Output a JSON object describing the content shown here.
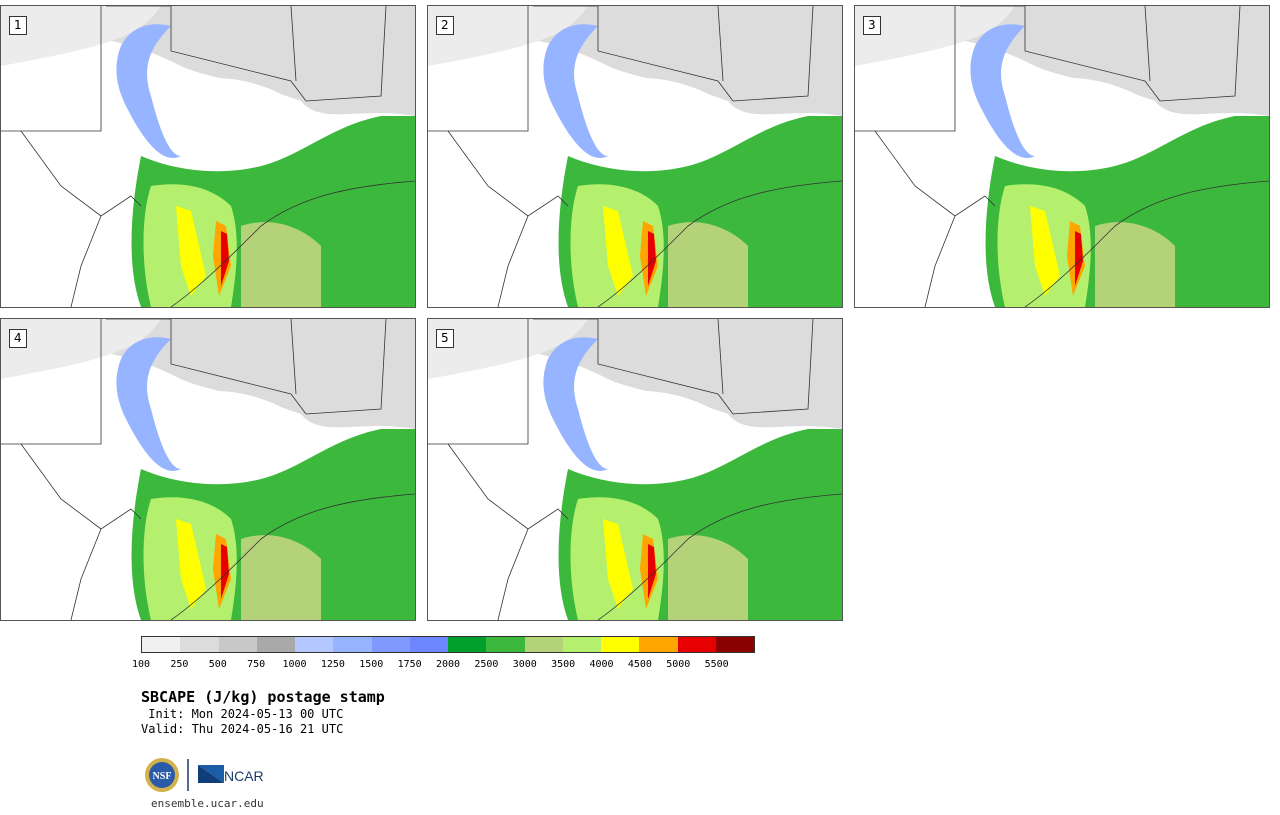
{
  "panels": [
    {
      "label": "1"
    },
    {
      "label": "2"
    },
    {
      "label": "3"
    },
    {
      "label": "4"
    },
    {
      "label": "5"
    }
  ],
  "colorbar": {
    "colors": [
      "#f0f0f0",
      "#dcdcdc",
      "#c8c8c8",
      "#a9a9a9",
      "#b4c8ff",
      "#96b4ff",
      "#8099ff",
      "#6e87ff",
      "#009e2a",
      "#3cb93c",
      "#b4d278",
      "#b4f06e",
      "#ffff00",
      "#ffa500",
      "#e60000",
      "#8b0000"
    ],
    "ticks": [
      "100",
      "250",
      "500",
      "750",
      "1000",
      "1250",
      "1500",
      "1750",
      "2000",
      "2500",
      "3000",
      "3500",
      "4000",
      "4500",
      "5000",
      "5500"
    ]
  },
  "title": "SBCAPE (J/kg) postage stamp",
  "init": " Init: Mon 2024-05-13 00 UTC",
  "valid": "Valid: Thu 2024-05-16 21 UTC",
  "logos": {
    "nsf": "NSF",
    "ncar": "NCAR"
  },
  "url": "ensemble.ucar.edu"
}
